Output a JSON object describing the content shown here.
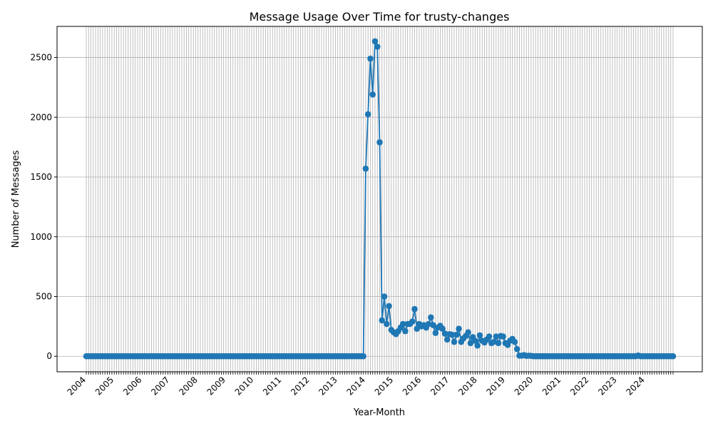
{
  "chart_data": {
    "type": "line",
    "title": "Message Usage Over Time for trusty-changes",
    "xlabel": "Year-Month",
    "ylabel": "Number of Messages",
    "x_tick_labels": [
      "2004",
      "2005",
      "2006",
      "2007",
      "2008",
      "2009",
      "2010",
      "2011",
      "2012",
      "2013",
      "2014",
      "2015",
      "2016",
      "2017",
      "2018",
      "2019",
      "2020",
      "2021",
      "2022",
      "2023",
      "2024"
    ],
    "y_ticks": [
      0,
      500,
      1000,
      1500,
      2000,
      2500
    ],
    "ylim": [
      -130,
      2760
    ],
    "grid": true,
    "marker": "circle",
    "color": "#1f77b4",
    "x_start": "2004-01",
    "x_end": "2025-01",
    "x": [
      "2014-01",
      "2014-02",
      "2014-03",
      "2014-04",
      "2014-05",
      "2014-06",
      "2014-07",
      "2014-08",
      "2014-09",
      "2014-10",
      "2014-11",
      "2014-12",
      "2015-01",
      "2015-02",
      "2015-03",
      "2015-04",
      "2015-05",
      "2015-06",
      "2015-07",
      "2015-08",
      "2015-09",
      "2015-10",
      "2015-11",
      "2015-12",
      "2016-01",
      "2016-02",
      "2016-03",
      "2016-04",
      "2016-05",
      "2016-06",
      "2016-07",
      "2016-08",
      "2016-09",
      "2016-10",
      "2016-11",
      "2016-12",
      "2017-01",
      "2017-02",
      "2017-03",
      "2017-04",
      "2017-05",
      "2017-06",
      "2017-07",
      "2017-08",
      "2017-09",
      "2017-10",
      "2017-11",
      "2017-12",
      "2018-01",
      "2018-02",
      "2018-03",
      "2018-04",
      "2018-05",
      "2018-06",
      "2018-07",
      "2018-08",
      "2018-09",
      "2018-10",
      "2018-11",
      "2018-12",
      "2019-01",
      "2019-02",
      "2019-03",
      "2019-04",
      "2019-05",
      "2019-06",
      "2019-07",
      "2019-08",
      "2019-09",
      "2019-10",
      "2019-11",
      "2019-12",
      "2023-10"
    ],
    "values": [
      1570,
      2025,
      2490,
      2190,
      2635,
      2590,
      1790,
      300,
      500,
      270,
      420,
      220,
      200,
      185,
      210,
      240,
      270,
      210,
      270,
      270,
      290,
      395,
      230,
      270,
      250,
      260,
      240,
      270,
      325,
      260,
      195,
      240,
      255,
      230,
      190,
      140,
      185,
      180,
      120,
      180,
      230,
      120,
      150,
      170,
      200,
      110,
      160,
      130,
      90,
      175,
      130,
      115,
      140,
      165,
      110,
      120,
      165,
      110,
      170,
      165,
      110,
      95,
      130,
      145,
      120,
      60,
      5,
      5,
      10,
      3,
      5,
      3,
      6
    ],
    "baseline_value": 0
  }
}
